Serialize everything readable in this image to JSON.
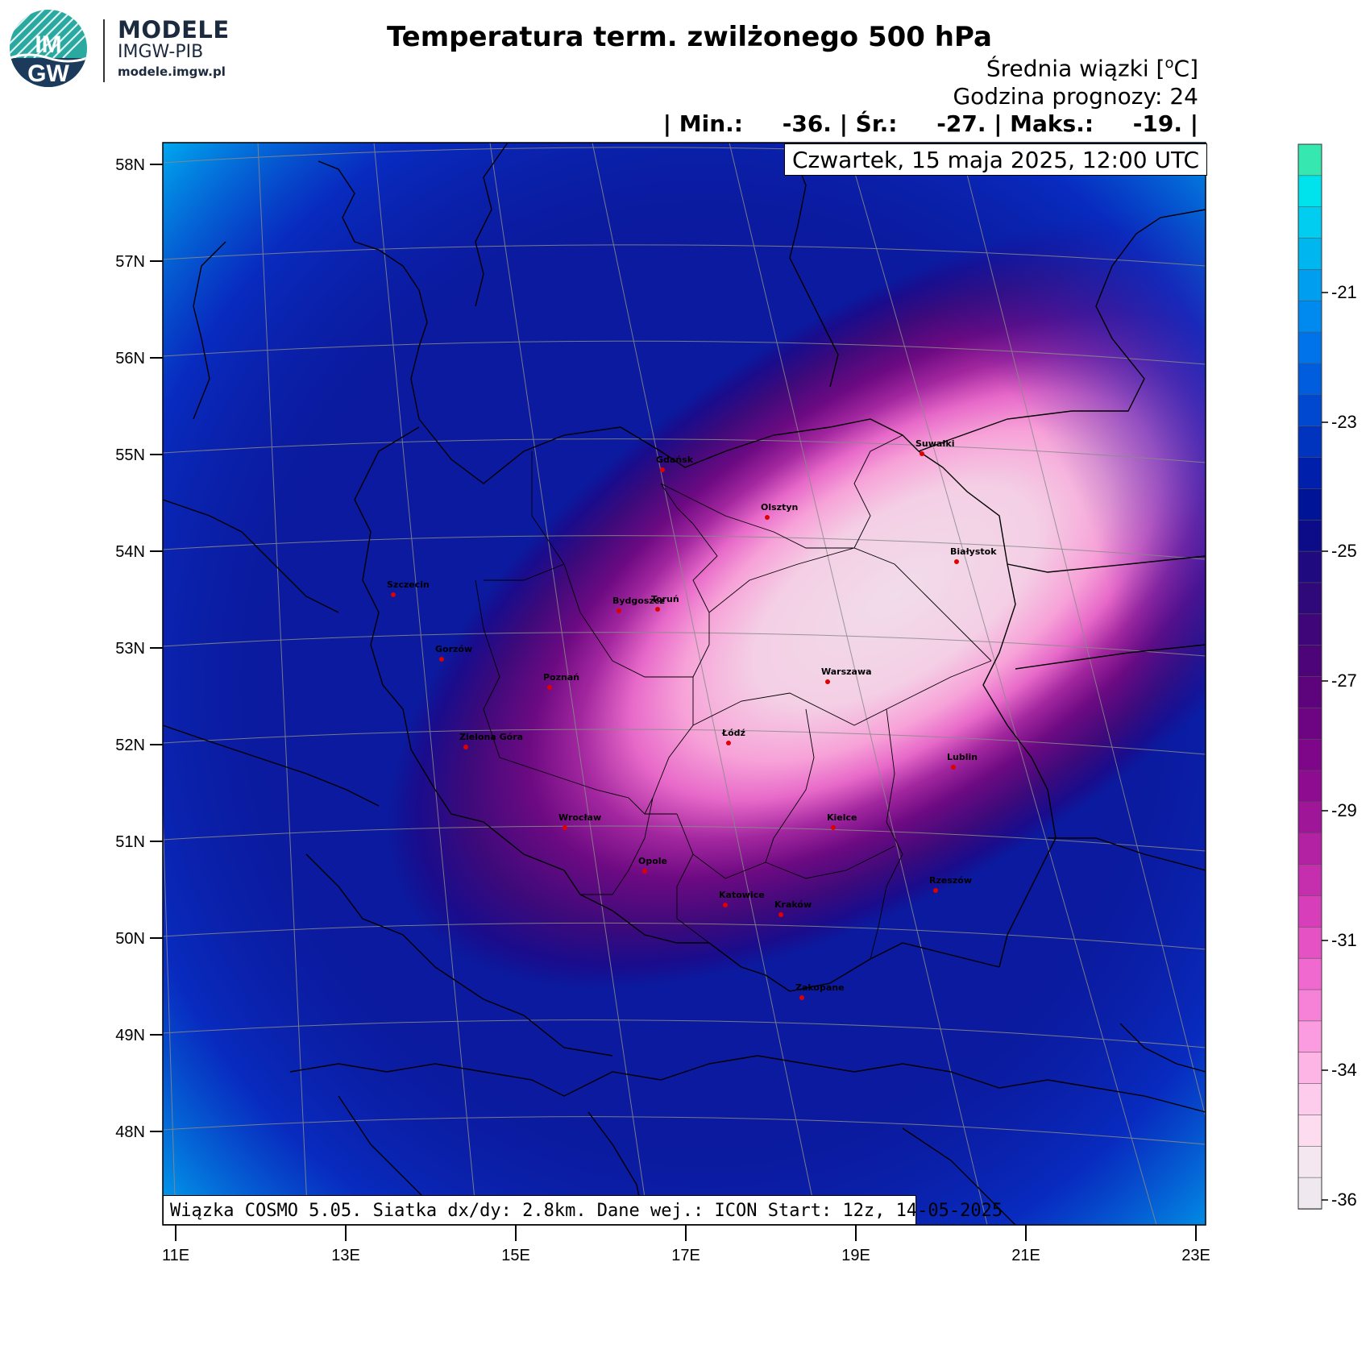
{
  "branding": {
    "logo_text_top": "IM",
    "logo_text_bottom": "GW",
    "title": "MODELE",
    "subtitle": "IMGW-PIB",
    "url": "modele.imgw.pl",
    "logo_icon": "imgw-logo-icon"
  },
  "header": {
    "title": "Temperatura term. zwilżonego 500 hPa",
    "units_prefix": "Średnia wiązki [",
    "units_unit": "C",
    "units_suffix": "]",
    "forecast_hour": "Godzina prognozy: 24",
    "stats": "| Min.:     -36. | Śr.:     -27. | Maks.:     -19. |",
    "date": "Czwartek, 15 maja 2025, 12:00 UTC"
  },
  "footer": {
    "text": "Wiązka COSMO 5.05. Siatka dx/dy: 2.8km. Dane wej.: ICON Start: 12z, 14-05-2025"
  },
  "axes": {
    "lat_labels": [
      "58N",
      "57N",
      "56N",
      "55N",
      "54N",
      "53N",
      "52N",
      "51N",
      "50N",
      "49N",
      "48N"
    ],
    "lon_labels": [
      "11E",
      "13E",
      "15E",
      "17E",
      "19E",
      "21E",
      "23E"
    ]
  },
  "colorbar": {
    "labels": [
      "-21",
      "-23",
      "-25",
      "-27",
      "-29",
      "-31",
      "-34",
      "-36"
    ],
    "colors": [
      "#36e8b0",
      "#00e3ec",
      "#00cdef",
      "#00b6ef",
      "#009eef",
      "#008aef",
      "#0073ea",
      "#005ede",
      "#0048cf",
      "#0034bf",
      "#0020ac",
      "#001498",
      "#0d0c88",
      "#1f0a80",
      "#2f0879",
      "#3e0678",
      "#4e0479",
      "#5d037c",
      "#6d0481",
      "#7d0788",
      "#8e0c90",
      "#a01699",
      "#b322a3",
      "#c52fae",
      "#d63fb9",
      "#e552c4",
      "#f069cf",
      "#f682d8",
      "#fa9cdf",
      "#fcb5e5",
      "#fdcbeb",
      "#fedcf0",
      "#f4e7ef",
      "#efe8ee"
    ]
  },
  "cities": [
    "Gdańsk",
    "Suwałki",
    "Olsztyn",
    "Białystok",
    "Szczecin",
    "Bydgoszcz",
    "Toruń",
    "Gorzów",
    "Warszawa",
    "Poznań",
    "Łódź",
    "Zielona Góra",
    "Lublin",
    "Wrocław",
    "Kielce",
    "Opole",
    "Rzeszów",
    "Katowice",
    "Kraków",
    "Zakopane"
  ],
  "colors": {
    "city_dot": "#e00000"
  },
  "field_range": {
    "min": -36,
    "mean": -27,
    "max": -19
  }
}
